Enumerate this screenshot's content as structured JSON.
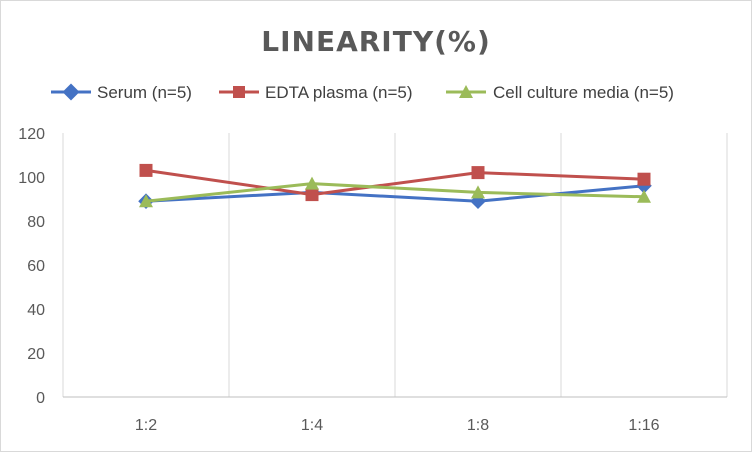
{
  "chart_data": {
    "type": "line",
    "title": "LINEARITY(%)",
    "categories": [
      "1:2",
      "1:4",
      "1:8",
      "1:16"
    ],
    "ylim": [
      0,
      120
    ],
    "yticks": [
      0,
      20,
      40,
      60,
      80,
      100,
      120
    ],
    "grid": "vertical",
    "legend_position": "top",
    "series": [
      {
        "name": "Serum (n=5)",
        "values": [
          89,
          93,
          89,
          96
        ],
        "color": "#4472c4",
        "marker": "diamond"
      },
      {
        "name": "EDTA plasma (n=5)",
        "values": [
          103,
          92,
          102,
          99
        ],
        "color": "#c0504d",
        "marker": "square"
      },
      {
        "name": "Cell culture media (n=5)",
        "values": [
          89,
          97,
          93,
          91
        ],
        "color": "#9bbb59",
        "marker": "triangle"
      }
    ]
  }
}
